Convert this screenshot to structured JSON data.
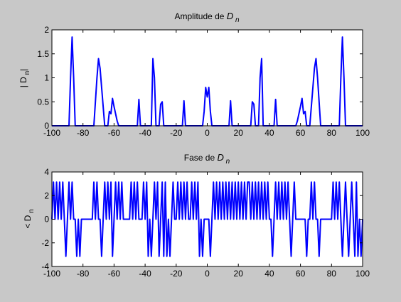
{
  "chart_data": [
    {
      "type": "line",
      "title": [
        "Amplitude de  ",
        "D",
        " n"
      ],
      "ylabel": [
        "| D",
        " n",
        "|"
      ],
      "xlim": [
        -100,
        100
      ],
      "xticks": [
        -100,
        -80,
        -60,
        -40,
        -20,
        0,
        20,
        40,
        60,
        80,
        100
      ],
      "ylim": [
        0,
        2
      ],
      "yticks": [
        0,
        0.5,
        1,
        1.5,
        2
      ],
      "x": [
        -100,
        -89,
        -88,
        -87,
        -86,
        -85,
        -73,
        -71,
        -70,
        -69,
        -67,
        -66,
        -64,
        -63,
        -62,
        -61,
        -60,
        -58,
        -57,
        -45,
        -44,
        -43,
        -36,
        -35,
        -34,
        -33,
        -31,
        -30,
        -29,
        -28,
        -16,
        -15,
        -14,
        -3,
        -2,
        -1,
        0,
        1,
        2,
        3,
        14,
        15,
        16,
        28,
        29,
        30,
        31,
        33,
        34,
        35,
        36,
        43,
        44,
        45,
        57,
        58,
        60,
        61,
        62,
        63,
        64,
        66,
        67,
        69,
        70,
        71,
        73,
        85,
        86,
        87,
        88,
        89,
        100
      ],
      "series": [
        {
          "color": "#0000ff",
          "values": [
            0,
            0,
            1.0,
            1.85,
            1.0,
            0,
            0,
            1.0,
            1.4,
            1.2,
            0.4,
            0,
            0,
            0.3,
            0.25,
            0.57,
            0.4,
            0.1,
            0,
            0,
            0.55,
            0,
            0,
            1.4,
            1.0,
            0,
            0,
            0.45,
            0.5,
            0,
            0,
            0.52,
            0,
            0,
            0.3,
            0.8,
            0.6,
            0.8,
            0.3,
            0,
            0,
            0.52,
            0,
            0,
            0.5,
            0.45,
            0,
            0,
            1.0,
            1.4,
            0,
            0,
            0.55,
            0,
            0,
            0.1,
            0.4,
            0.57,
            0.25,
            0.3,
            0,
            0,
            0.4,
            1.2,
            1.4,
            1.0,
            0,
            0,
            1.0,
            1.85,
            1.0,
            0,
            0
          ]
        }
      ]
    },
    {
      "type": "line",
      "title": [
        "Fase de  ",
        "D",
        " n"
      ],
      "ylabel": [
        "< D",
        " n"
      ],
      "xlim": [
        -100,
        100
      ],
      "xticks": [
        -100,
        -80,
        -60,
        -40,
        -20,
        0,
        20,
        40,
        60,
        80,
        100
      ],
      "ylim": [
        -4,
        4
      ],
      "yticks": [
        -4,
        -2,
        0,
        2,
        4
      ],
      "x": [
        -100,
        -99,
        -98,
        -97,
        -96,
        -95,
        -94,
        -93,
        -92,
        -91,
        -90,
        -89,
        -88,
        -87,
        -86,
        -85,
        -84,
        -83,
        -82,
        -81,
        -80,
        -79,
        -78,
        -77,
        -76,
        -75,
        -74,
        -73,
        -72,
        -71,
        -70,
        -69,
        -68,
        -67,
        -66,
        -65,
        -64,
        -63,
        -62,
        -61,
        -60,
        -59,
        -58,
        -57,
        -56,
        -55,
        -54,
        -53,
        -52,
        -51,
        -50,
        -49,
        -48,
        -47,
        -46,
        -45,
        -44,
        -43,
        -42,
        -41,
        -40,
        -39,
        -38,
        -37,
        -36,
        -35,
        -34,
        -33,
        -32,
        -31,
        -30,
        -29,
        -28,
        -27,
        -26,
        -25,
        -24,
        -23,
        -22,
        -21,
        -20,
        -19,
        -18,
        -17,
        -16,
        -15,
        -14,
        -13,
        -12,
        -11,
        -10,
        -9,
        -8,
        -7,
        -6,
        -5,
        -4,
        -3,
        -2,
        -1,
        0,
        1,
        2,
        3,
        4,
        5,
        6,
        7,
        8,
        9,
        10,
        11,
        12,
        13,
        14,
        15,
        16,
        17,
        18,
        19,
        20,
        21,
        22,
        23,
        24,
        25,
        26,
        27,
        28,
        29,
        30,
        31,
        32,
        33,
        34,
        35,
        36,
        37,
        38,
        39,
        40,
        41,
        42,
        43,
        44,
        45,
        46,
        47,
        48,
        49,
        50,
        51,
        52,
        53,
        54,
        55,
        56,
        57,
        58,
        59,
        60,
        61,
        62,
        63,
        64,
        65,
        66,
        67,
        68,
        69,
        70,
        71,
        72,
        73,
        74,
        75,
        76,
        77,
        78,
        79,
        80,
        81,
        82,
        83,
        84,
        85,
        86,
        87,
        88,
        89,
        90,
        91,
        92,
        93,
        94,
        95,
        96,
        97,
        98,
        99,
        100
      ],
      "series": [
        {
          "color": "#0000ff",
          "values": [
            0,
            3.14,
            0,
            3.14,
            0,
            3.14,
            0,
            3.14,
            0,
            -3.14,
            0,
            3.14,
            0,
            3.14,
            0,
            0,
            -3.14,
            0,
            -3.14,
            0,
            0,
            0,
            0,
            0,
            0,
            0,
            0,
            3.14,
            0,
            3.14,
            0,
            0,
            -3.14,
            0,
            3.14,
            0,
            3.14,
            0,
            3.14,
            -3.14,
            0,
            3.14,
            0,
            3.14,
            0,
            3.14,
            0,
            0,
            0,
            0,
            0,
            3.14,
            0,
            3.14,
            0,
            3.14,
            0,
            0,
            0,
            3.14,
            0,
            3.14,
            -3.14,
            0,
            -3.14,
            0,
            3.14,
            0,
            3.14,
            -3.14,
            0,
            3.14,
            -3.14,
            3.14,
            -3.14,
            0,
            -3.14,
            0,
            3.14,
            0,
            0,
            3.14,
            0,
            3.14,
            0,
            3.14,
            0,
            3.14,
            0,
            0,
            3.14,
            0,
            3.14,
            0,
            3.14,
            -3.14,
            0,
            -3.14,
            0,
            0,
            0,
            0,
            -3.14,
            0,
            3.14,
            0,
            3.14,
            0,
            3.14,
            0,
            3.14,
            0,
            3.14,
            0,
            3.14,
            0,
            3.14,
            0,
            3.14,
            0,
            3.14,
            0,
            3.14,
            0,
            3.14,
            0,
            3.14,
            3.14,
            0,
            3.14,
            0,
            3.14,
            0,
            3.14,
            0,
            3.14,
            0,
            3.14,
            0,
            3.14,
            0,
            0,
            -3.14,
            0,
            3.14,
            0,
            3.14,
            0,
            3.14,
            0,
            3.14,
            0,
            3.14,
            0,
            -3.14,
            0,
            3.14,
            0,
            0,
            0,
            0,
            0,
            0,
            0,
            -3.14,
            0,
            0,
            3.14,
            0,
            3.14,
            0,
            0,
            -3.14,
            0,
            0,
            0,
            0,
            0,
            0,
            0,
            0,
            3.14,
            0,
            3.14,
            0,
            3.14,
            0,
            -3.14,
            0,
            3.14,
            0,
            -3.14,
            0,
            3.14,
            0,
            -3.14,
            3.14,
            -3.14,
            0,
            -3.14,
            0
          ]
        }
      ]
    }
  ]
}
